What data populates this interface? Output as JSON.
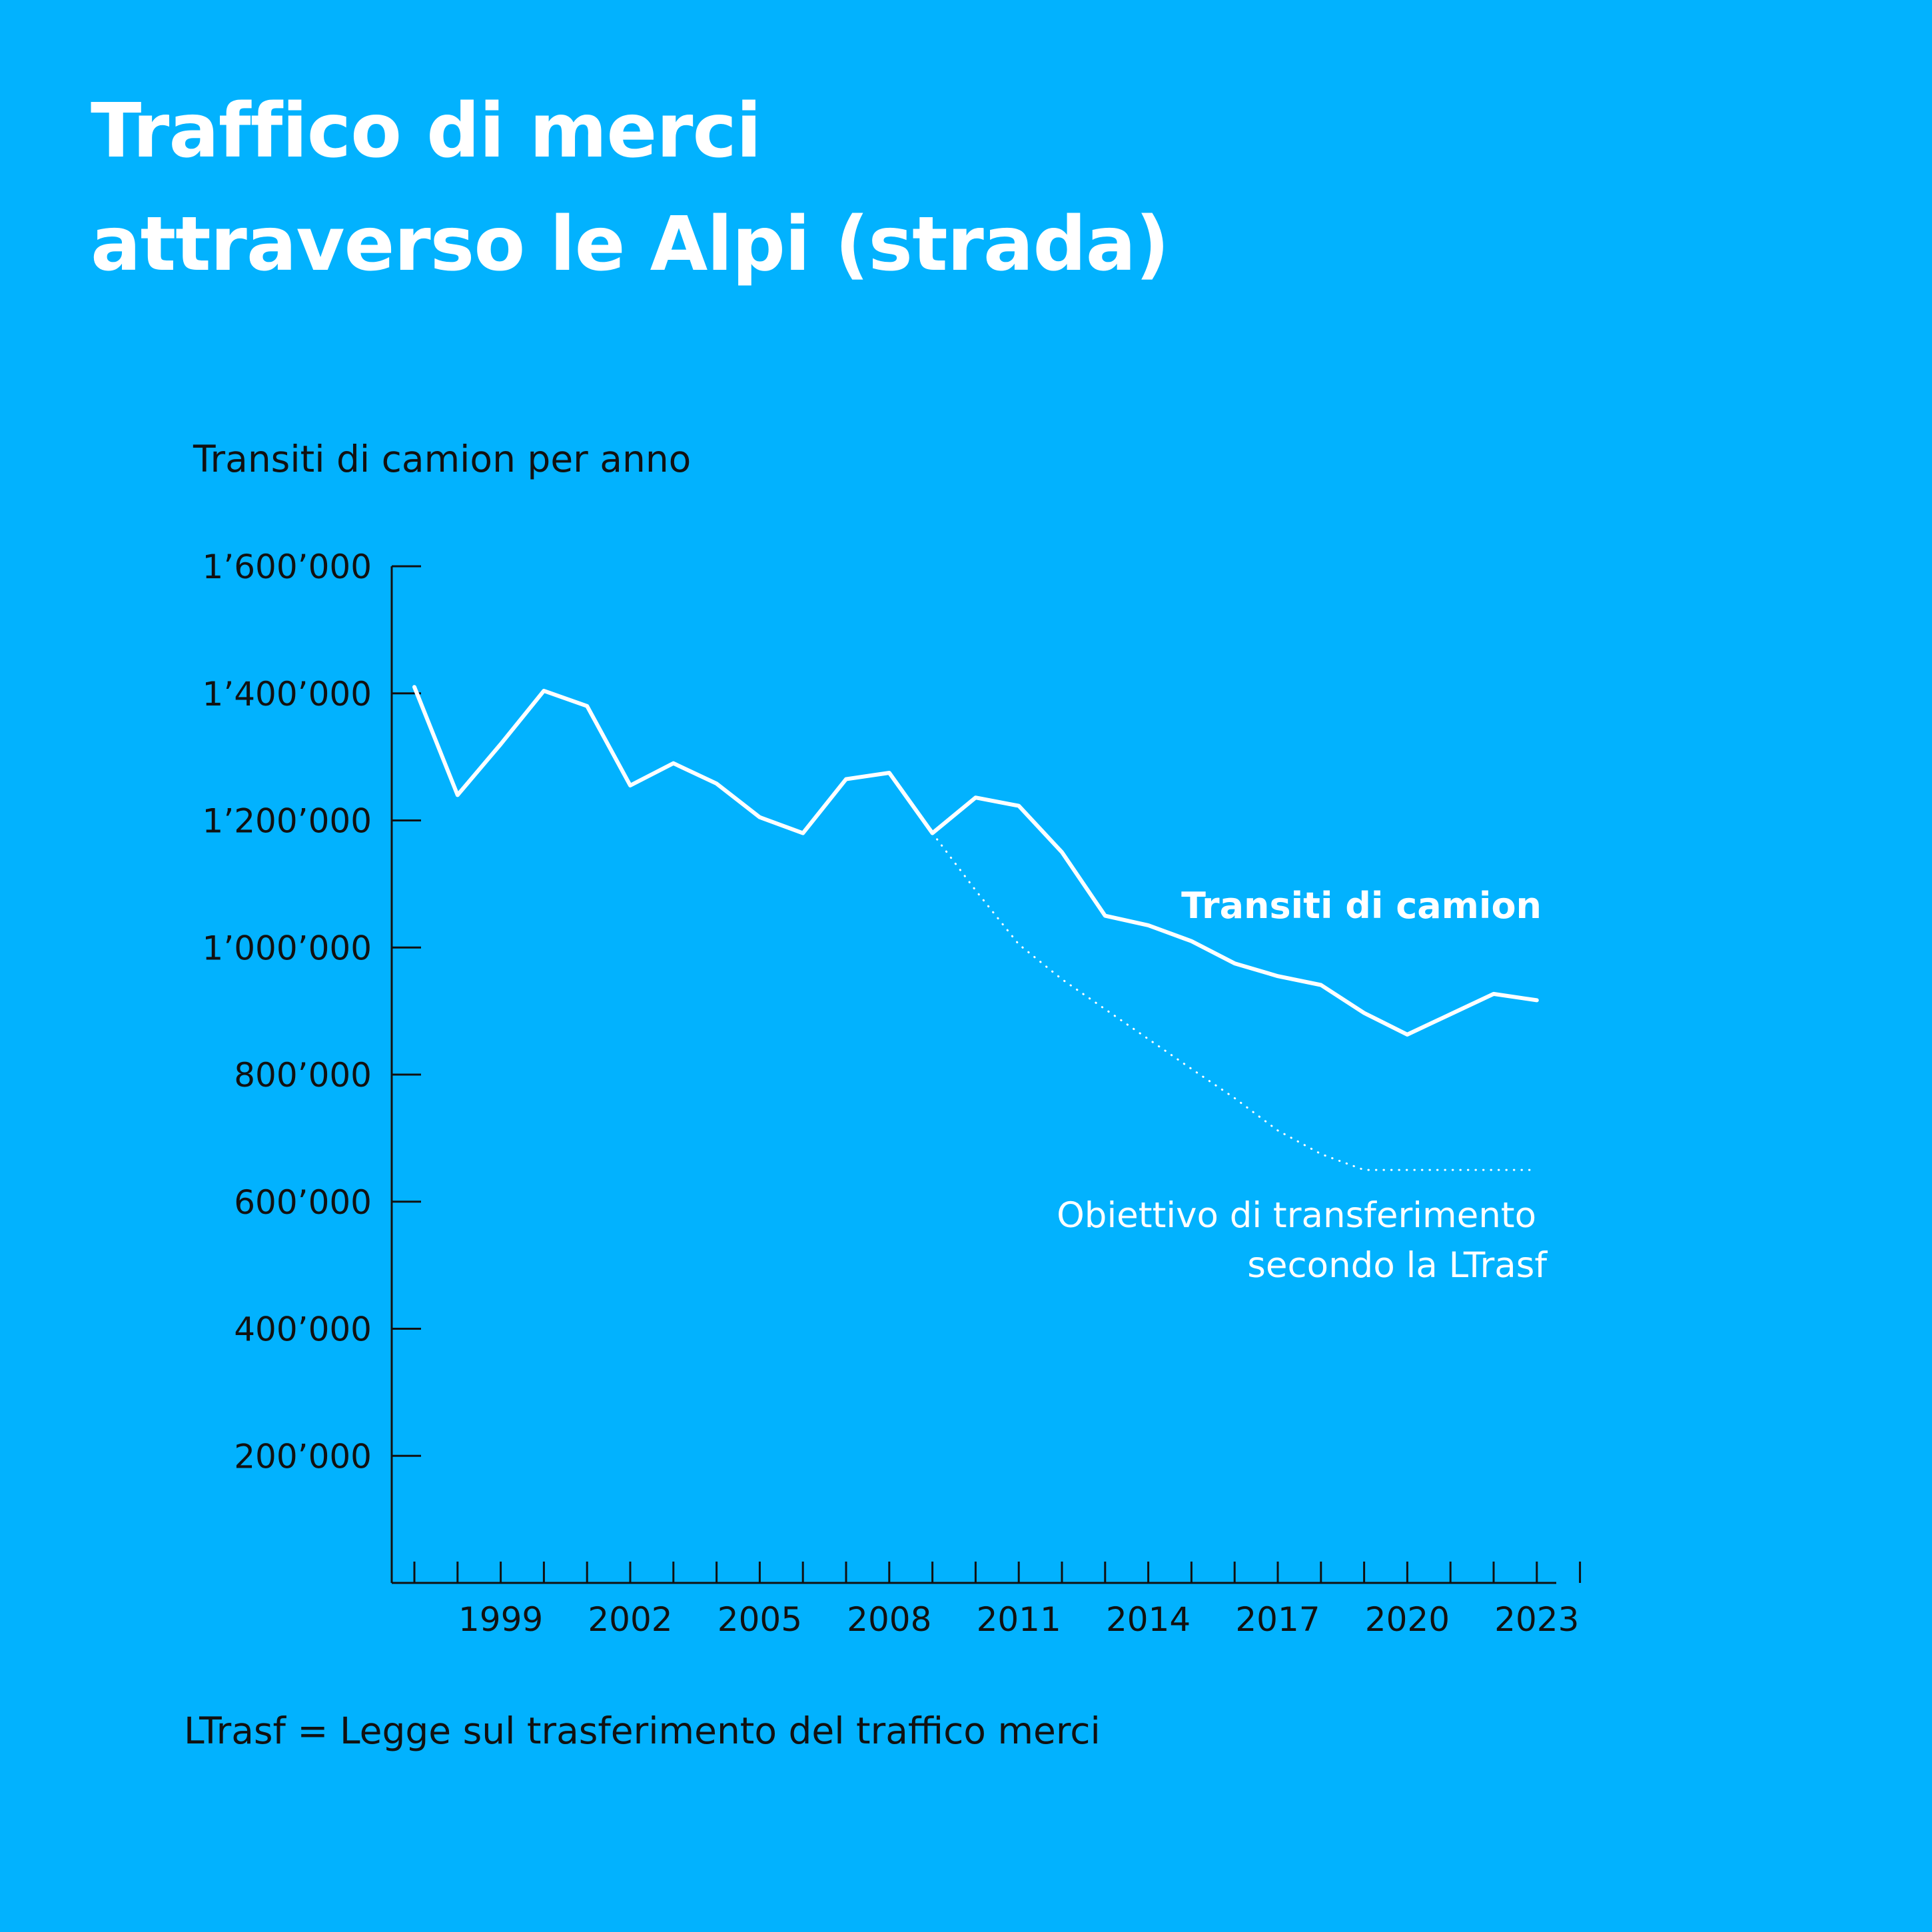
{
  "title_lines": [
    "Traffico di merci",
    "attraverso le Alpi (strada)"
  ],
  "footnote": "LTrasf = Legge sul trasferimento del traffico merci",
  "colors": {
    "background": "#02b2fe",
    "series": "#ffffff",
    "text": "#111111"
  },
  "chart_data": {
    "type": "line",
    "title": "Traffico di merci attraverso le Alpi (strada)",
    "xlabel": "",
    "ylabel": "Transiti di camion per anno",
    "xlim": [
      1997,
      2024
    ],
    "ylim": [
      0,
      1600000
    ],
    "x_ticks": [
      1999,
      2002,
      2005,
      2008,
      2011,
      2014,
      2017,
      2020,
      2023
    ],
    "x_tick_labels": [
      "1999",
      "2002",
      "2005",
      "2008",
      "2011",
      "2014",
      "2017",
      "2020",
      "2023"
    ],
    "y_ticks": [
      200000,
      400000,
      600000,
      800000,
      1000000,
      1200000,
      1400000,
      1600000
    ],
    "y_tick_labels": [
      "200’000",
      "400’000",
      "600’000",
      "800’000",
      "1’000’000",
      "1’200’000",
      "1’400’000",
      "1’600’000"
    ],
    "grid": false,
    "series": [
      {
        "name": "Transiti di camion",
        "style": "solid",
        "x": [
          1997,
          1998,
          1999,
          2000,
          2001,
          2002,
          2003,
          2004,
          2005,
          2006,
          2007,
          2008,
          2009,
          2010,
          2011,
          2012,
          2013,
          2014,
          2015,
          2016,
          2017,
          2018,
          2019,
          2020,
          2021,
          2022,
          2023
        ],
        "y": [
          1410000,
          1240000,
          1320000,
          1404000,
          1380000,
          1255000,
          1290000,
          1258000,
          1205000,
          1180000,
          1265000,
          1275000,
          1180000,
          1236000,
          1223000,
          1150000,
          1050000,
          1035000,
          1010000,
          975000,
          955000,
          941000,
          897000,
          863000,
          895000,
          927000,
          917000
        ]
      },
      {
        "name": "Obiettivo di transferimento secondo la LTrasf",
        "style": "dotted",
        "x": [
          2009,
          2010,
          2011,
          2012,
          2013,
          2014,
          2015,
          2016,
          2017,
          2018,
          2019,
          2020,
          2021,
          2022,
          2023
        ],
        "y": [
          1180000,
          1090000,
          1005000,
          950000,
          903000,
          856000,
          809000,
          763000,
          712000,
          675000,
          650000,
          650000,
          650000,
          650000,
          650000
        ]
      }
    ],
    "series_labels": {
      "main": [
        "Transiti di camion"
      ],
      "target": [
        "Obiettivo di transferimento",
        "secondo la LTrasf"
      ]
    }
  }
}
